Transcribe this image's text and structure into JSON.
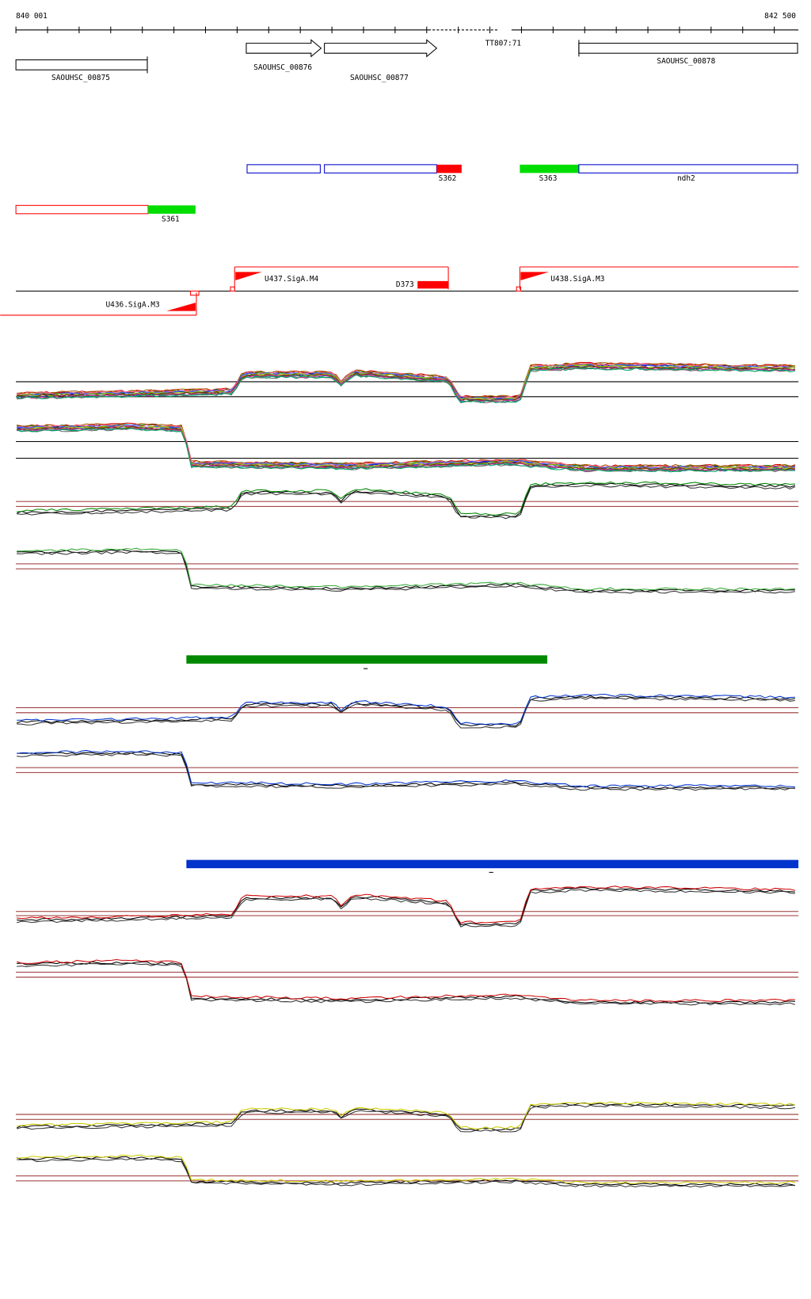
{
  "ruler": {
    "start": "840 001",
    "end": "842 500"
  },
  "genes": [
    {
      "label": "SAOUHSC_00875"
    },
    {
      "label": "SAOUHSC_00876"
    },
    {
      "label": "SAOUHSC_00877"
    },
    {
      "label": "TT807:71"
    },
    {
      "label": "SAOUHSC_00878"
    }
  ],
  "segments": [
    {
      "label": "S362"
    },
    {
      "label": "S363"
    },
    {
      "label": "ndh2"
    },
    {
      "label": "S361"
    }
  ],
  "promoters": [
    {
      "label": "U437.SigA.M4"
    },
    {
      "label": "D373"
    },
    {
      "label": "U438.SigA.M3"
    },
    {
      "label": "U436.SigA.M3"
    }
  ]
}
